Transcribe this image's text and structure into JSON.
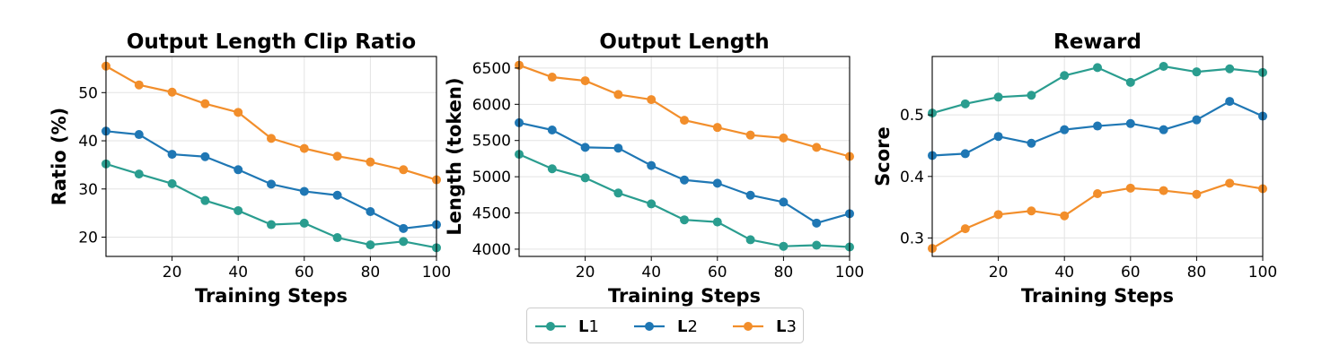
{
  "legend": {
    "entries": [
      {
        "bold": "L",
        "suffix": "1",
        "color": "#2a9d8f"
      },
      {
        "bold": "L",
        "suffix": "2",
        "color": "#1f77b4"
      },
      {
        "bold": "L",
        "suffix": "3",
        "color": "#f28e2b"
      }
    ]
  },
  "chart_data": [
    {
      "type": "line",
      "title": "Output Length Clip Ratio",
      "xlabel": "Training Steps",
      "ylabel": "Ratio (%)",
      "xlim": [
        0,
        100
      ],
      "ylim": [
        16,
        57.5
      ],
      "xticks": [
        20,
        40,
        60,
        80,
        100
      ],
      "yticks": [
        20,
        30,
        40,
        50
      ],
      "grid": true,
      "x": [
        0,
        10,
        20,
        30,
        40,
        50,
        60,
        70,
        80,
        90,
        100
      ],
      "series": [
        {
          "name": "L1",
          "color": "#2a9d8f",
          "values": [
            35.2,
            33.1,
            31.1,
            27.6,
            25.5,
            22.6,
            22.9,
            19.9,
            18.4,
            19.1,
            17.8
          ]
        },
        {
          "name": "L2",
          "color": "#1f77b4",
          "values": [
            42.0,
            41.3,
            37.2,
            36.7,
            34.0,
            31.0,
            29.5,
            28.7,
            25.3,
            21.8,
            22.6
          ]
        },
        {
          "name": "L3",
          "color": "#f28e2b",
          "values": [
            55.5,
            51.6,
            50.1,
            47.7,
            45.9,
            40.5,
            38.4,
            36.8,
            35.6,
            34.0,
            31.9
          ]
        }
      ]
    },
    {
      "type": "line",
      "title": "Output Length",
      "xlabel": "Training Steps",
      "ylabel": "Length (token)",
      "xlim": [
        0,
        100
      ],
      "ylim": [
        3900,
        6660
      ],
      "xticks": [
        20,
        40,
        60,
        80,
        100
      ],
      "yticks": [
        4000,
        4500,
        5000,
        5500,
        6000,
        6500
      ],
      "grid": true,
      "x": [
        0,
        10,
        20,
        30,
        40,
        50,
        60,
        70,
        80,
        90,
        100
      ],
      "series": [
        {
          "name": "L1",
          "color": "#2a9d8f",
          "values": [
            5310,
            5110,
            4985,
            4775,
            4625,
            4405,
            4375,
            4130,
            4040,
            4055,
            4030
          ]
        },
        {
          "name": "L2",
          "color": "#1f77b4",
          "values": [
            5745,
            5645,
            5405,
            5395,
            5155,
            4955,
            4910,
            4745,
            4650,
            4360,
            4490
          ]
        },
        {
          "name": "L3",
          "color": "#f28e2b",
          "values": [
            6540,
            6375,
            6325,
            6135,
            6065,
            5780,
            5680,
            5575,
            5535,
            5405,
            5280
          ]
        }
      ]
    },
    {
      "type": "line",
      "title": "Reward",
      "xlabel": "Training Steps",
      "ylabel": "Score",
      "xlim": [
        0,
        100
      ],
      "ylim": [
        0.27,
        0.595
      ],
      "xticks": [
        20,
        40,
        60,
        80,
        100
      ],
      "yticks": [
        0.3,
        0.4,
        0.5
      ],
      "grid": true,
      "x": [
        0,
        10,
        20,
        30,
        40,
        50,
        60,
        70,
        80,
        90,
        100
      ],
      "series": [
        {
          "name": "L1",
          "color": "#2a9d8f",
          "values": [
            0.503,
            0.518,
            0.529,
            0.532,
            0.564,
            0.577,
            0.553,
            0.579,
            0.57,
            0.575,
            0.569
          ]
        },
        {
          "name": "L2",
          "color": "#1f77b4",
          "values": [
            0.434,
            0.437,
            0.465,
            0.454,
            0.476,
            0.482,
            0.486,
            0.476,
            0.492,
            0.522,
            0.498
          ]
        },
        {
          "name": "L3",
          "color": "#f28e2b",
          "values": [
            0.283,
            0.315,
            0.338,
            0.344,
            0.336,
            0.372,
            0.381,
            0.377,
            0.371,
            0.389,
            0.38
          ]
        }
      ]
    }
  ]
}
